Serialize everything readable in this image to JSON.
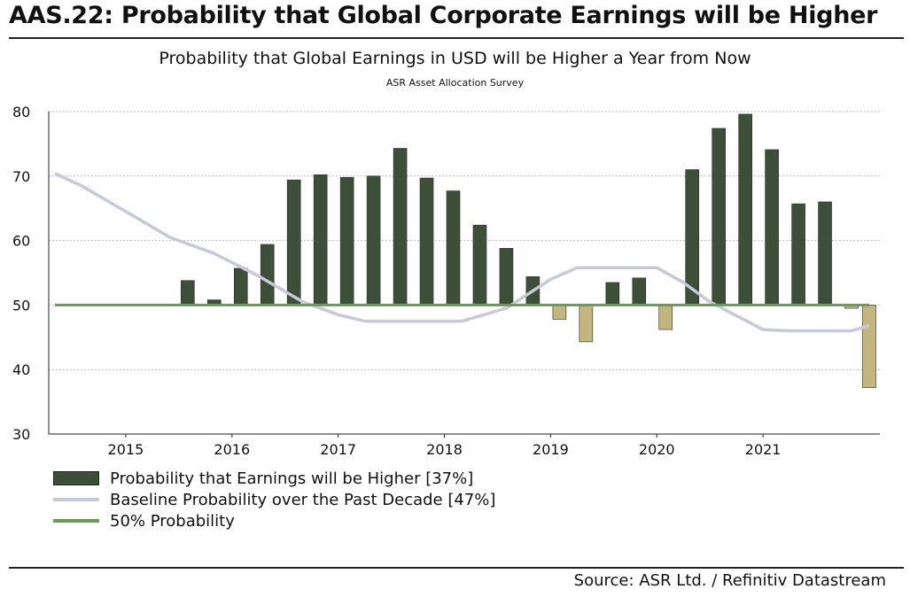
{
  "header": {
    "title": "AAS.22: Probability that Global Corporate Earnings will be Higher"
  },
  "footer": {
    "source": "Source: ASR Ltd.  / Refinitiv Datastream"
  },
  "colors": {
    "bar_up": "#3d4f39",
    "bar_down": "#c2b67e",
    "baseline_line": "#c7c8d8",
    "fifty_line": "#6a9a5a"
  },
  "legend": {
    "items": [
      {
        "label": "Probability that Earnings will be Higher [37%]",
        "swatch": "bar"
      },
      {
        "label": "Baseline Probability over the Past Decade [47%]",
        "swatch": "baseline"
      },
      {
        "label": "50% Probability",
        "swatch": "fifty"
      }
    ]
  },
  "chart_data": {
    "type": "bar",
    "title": "Probability that Global Earnings in USD will be Higher a Year from Now",
    "subtitle": "ASR Asset Allocation Survey",
    "xlabel": "",
    "ylabel": "",
    "ylim": [
      30,
      80
    ],
    "yticks": [
      30,
      40,
      50,
      60,
      70,
      80
    ],
    "grid": true,
    "bar_base": 50,
    "x_start": "2014-05",
    "x_end": "2022-01",
    "x_ticks": [
      {
        "label": "2015",
        "date": "2015-01"
      },
      {
        "label": "2016",
        "date": "2016-01"
      },
      {
        "label": "2017",
        "date": "2017-01"
      },
      {
        "label": "2018",
        "date": "2018-01"
      },
      {
        "label": "2019",
        "date": "2019-01"
      },
      {
        "label": "2020",
        "date": "2020-01"
      },
      {
        "label": "2021",
        "date": "2021-01"
      }
    ],
    "series": [
      {
        "name": "Probability that Earnings will be Higher [37%]",
        "type": "bar",
        "points": [
          {
            "date": "2015-08",
            "value": 53.8
          },
          {
            "date": "2015-11",
            "value": 50.8
          },
          {
            "date": "2016-02",
            "value": 55.7
          },
          {
            "date": "2016-05",
            "value": 59.4
          },
          {
            "date": "2016-08",
            "value": 69.4
          },
          {
            "date": "2016-11",
            "value": 70.2
          },
          {
            "date": "2017-02",
            "value": 69.8
          },
          {
            "date": "2017-05",
            "value": 70.0
          },
          {
            "date": "2017-08",
            "value": 74.3
          },
          {
            "date": "2017-11",
            "value": 69.7
          },
          {
            "date": "2018-02",
            "value": 67.7
          },
          {
            "date": "2018-05",
            "value": 62.4
          },
          {
            "date": "2018-08",
            "value": 58.8
          },
          {
            "date": "2018-11",
            "value": 54.4
          },
          {
            "date": "2019-02",
            "value": 47.8
          },
          {
            "date": "2019-05",
            "value": 44.3
          },
          {
            "date": "2019-08",
            "value": 53.5
          },
          {
            "date": "2019-11",
            "value": 54.2
          },
          {
            "date": "2020-02",
            "value": 46.2
          },
          {
            "date": "2020-05",
            "value": 71.0
          },
          {
            "date": "2020-08",
            "value": 77.4
          },
          {
            "date": "2020-11",
            "value": 79.6
          },
          {
            "date": "2021-02",
            "value": 74.1
          },
          {
            "date": "2021-05",
            "value": 65.7
          },
          {
            "date": "2021-08",
            "value": 66.0
          },
          {
            "date": "2021-11",
            "value": 49.5
          },
          {
            "date": "2022-01",
            "value": 37.2
          }
        ]
      },
      {
        "name": "Baseline Probability over the Past Decade [47%]",
        "type": "line",
        "points": [
          {
            "date": "2014-05",
            "value": 70.4
          },
          {
            "date": "2014-08",
            "value": 68.5
          },
          {
            "date": "2015-01",
            "value": 64.5
          },
          {
            "date": "2015-06",
            "value": 60.5
          },
          {
            "date": "2015-11",
            "value": 58.0
          },
          {
            "date": "2016-04",
            "value": 54.5
          },
          {
            "date": "2016-09",
            "value": 50.5
          },
          {
            "date": "2017-01",
            "value": 48.5
          },
          {
            "date": "2017-04",
            "value": 47.5
          },
          {
            "date": "2018-03",
            "value": 47.5
          },
          {
            "date": "2018-08",
            "value": 49.5
          },
          {
            "date": "2019-01",
            "value": 54.0
          },
          {
            "date": "2019-04",
            "value": 55.8
          },
          {
            "date": "2020-01",
            "value": 55.8
          },
          {
            "date": "2020-04",
            "value": 53.5
          },
          {
            "date": "2020-07",
            "value": 50.5
          },
          {
            "date": "2021-01",
            "value": 46.2
          },
          {
            "date": "2021-04",
            "value": 46.0
          },
          {
            "date": "2021-11",
            "value": 46.0
          },
          {
            "date": "2022-01",
            "value": 46.8
          }
        ]
      },
      {
        "name": "50% Probability",
        "type": "line",
        "points": [
          {
            "date": "2014-05",
            "value": 50
          },
          {
            "date": "2022-01",
            "value": 50
          }
        ]
      }
    ]
  }
}
